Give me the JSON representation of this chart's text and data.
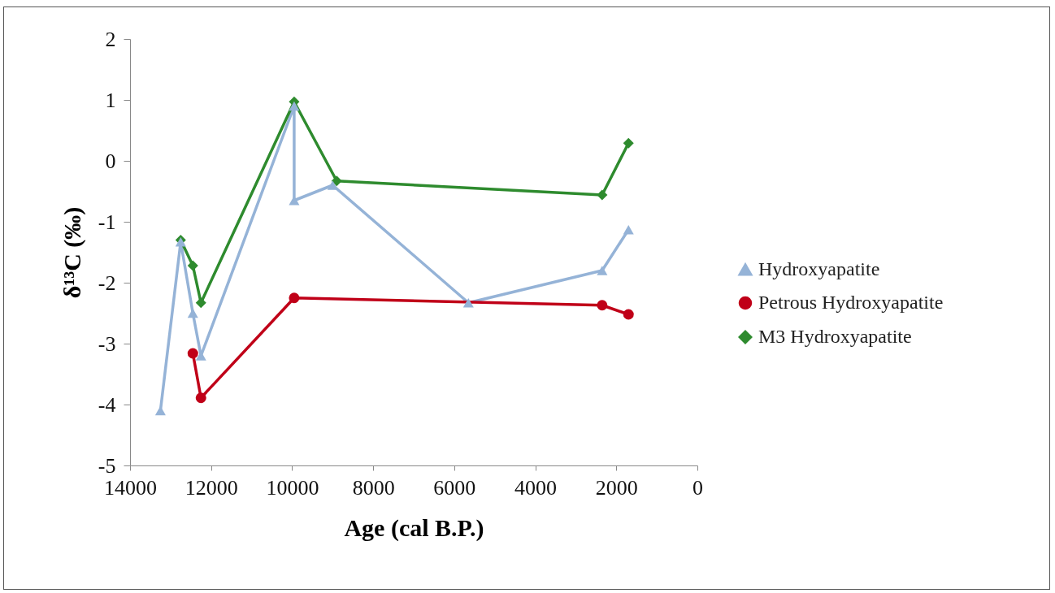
{
  "chart_data": {
    "type": "line",
    "xlabel": "Age (cal B.P.)",
    "ylabel": "δ¹³C (‰)",
    "xlim": [
      14000,
      0
    ],
    "xticks": [
      14000,
      12000,
      10000,
      8000,
      6000,
      4000,
      2000,
      0
    ],
    "ylim": [
      -5,
      2
    ],
    "yticks": [
      -5,
      -4,
      -3,
      -2,
      -1,
      0,
      1,
      2
    ],
    "grid": false,
    "legend": "right",
    "line_style": "solid",
    "series": [
      {
        "name": "Hydroxyapatite",
        "color": "#95b3d7",
        "marker": "triangle",
        "x": [
          13250,
          12750,
          12450,
          12250,
          9950,
          9950,
          9000,
          5650,
          2350,
          1700
        ],
        "values": [
          -4.1,
          -1.33,
          -2.5,
          -3.2,
          0.9,
          -0.65,
          -0.4,
          -2.33,
          -1.8,
          -1.13
        ]
      },
      {
        "name": "Petrous Hydroxyapatite",
        "color": "#c00018",
        "marker": "circle",
        "x": [
          12450,
          12250,
          9950,
          2350,
          1700
        ],
        "values": [
          -3.16,
          -3.89,
          -2.25,
          -2.37,
          -2.52
        ]
      },
      {
        "name": "M3 Hydroxyapatite",
        "color": "#2e8b2e",
        "marker": "diamond",
        "x": [
          12750,
          12450,
          12250,
          9950,
          8900,
          2350,
          1700
        ],
        "values": [
          -1.3,
          -1.72,
          -2.33,
          0.97,
          -0.33,
          -0.56,
          0.29
        ]
      }
    ]
  }
}
